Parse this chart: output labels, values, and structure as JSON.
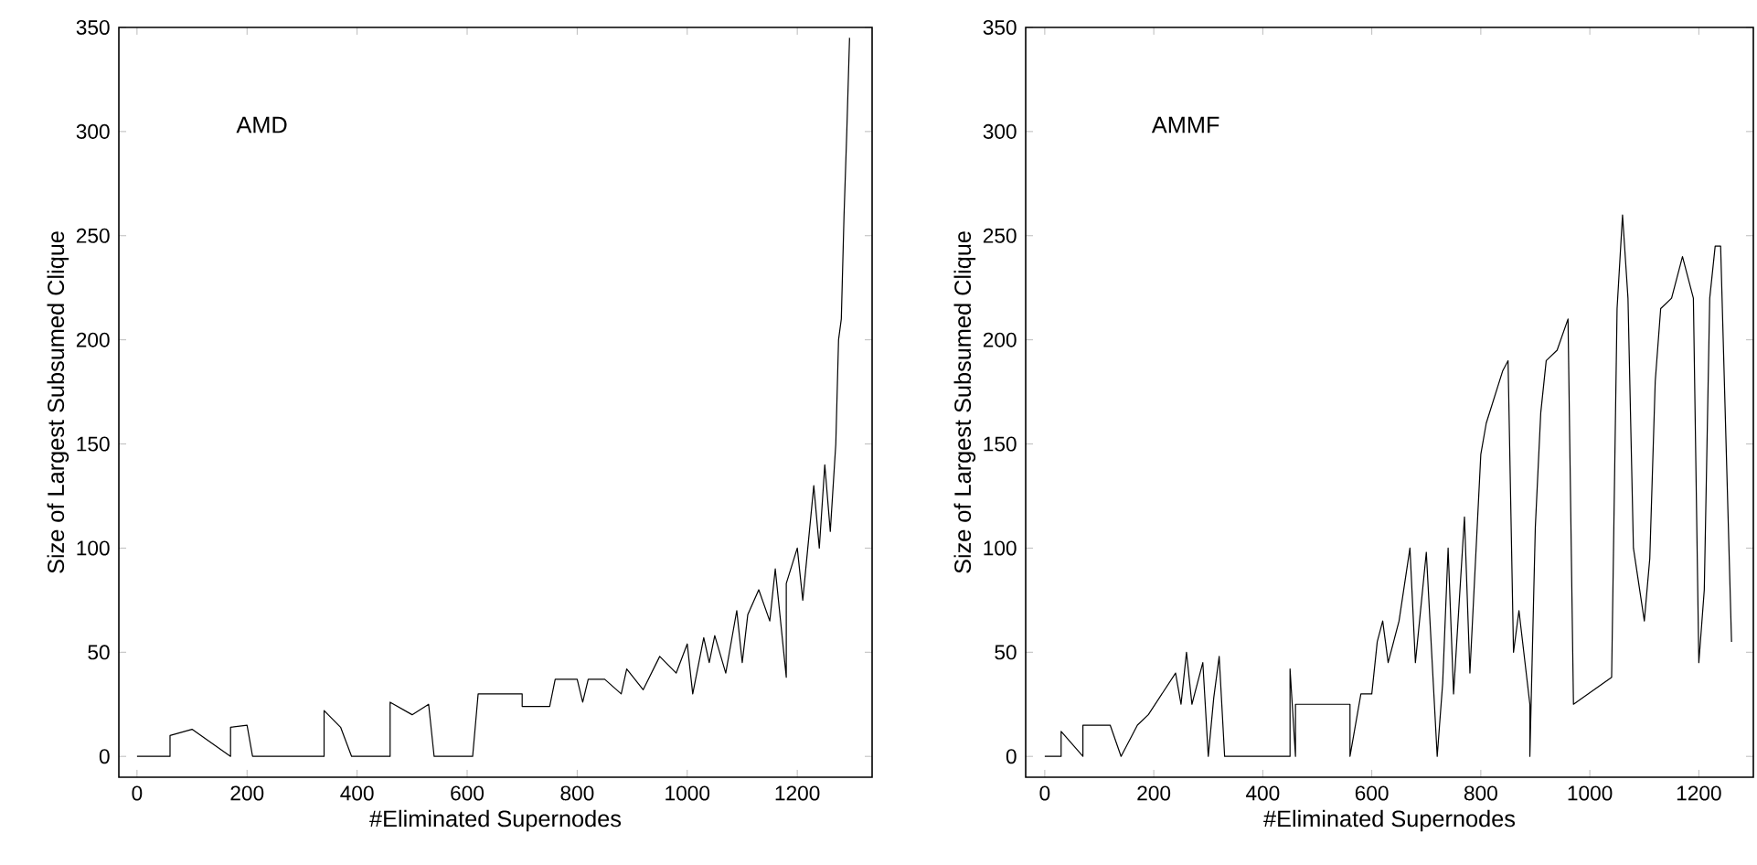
{
  "chart_data": [
    {
      "type": "line",
      "xlabel": "#Eliminated Supernodes",
      "ylabel": "Size of Largest Subsumed Clique",
      "annotations": [
        "AMD"
      ],
      "color": "#000000",
      "x": [
        0,
        60,
        60,
        100,
        170,
        170,
        200,
        210,
        340,
        340,
        370,
        390,
        460,
        460,
        500,
        530,
        540,
        610,
        620,
        700,
        700,
        750,
        760,
        800,
        810,
        820,
        850,
        880,
        890,
        920,
        950,
        980,
        1000,
        1010,
        1030,
        1040,
        1050,
        1070,
        1090,
        1100,
        1110,
        1130,
        1150,
        1160,
        1180,
        1180,
        1200,
        1210,
        1230,
        1240,
        1250,
        1260,
        1270,
        1275,
        1280,
        1285,
        1290,
        1295
      ],
      "values": [
        0,
        0,
        10,
        13,
        0,
        14,
        15,
        0,
        0,
        22,
        14,
        0,
        0,
        26,
        20,
        25,
        0,
        0,
        30,
        30,
        24,
        24,
        37,
        37,
        26,
        37,
        37,
        30,
        42,
        32,
        48,
        40,
        54,
        30,
        57,
        45,
        58,
        40,
        70,
        45,
        68,
        80,
        65,
        90,
        38,
        83,
        100,
        75,
        130,
        100,
        140,
        108,
        150,
        200,
        210,
        260,
        300,
        345
      ],
      "xlim": [
        -33,
        1336
      ],
      "ylim": [
        -10,
        350
      ],
      "xticks": [
        0,
        200,
        400,
        600,
        800,
        1000,
        1200
      ],
      "yticks": [
        0,
        50,
        100,
        150,
        200,
        250,
        300,
        350
      ]
    },
    {
      "type": "line",
      "xlabel": "#Eliminated Supernodes",
      "ylabel": "Size of Largest Subsumed Clique",
      "annotations": [
        "AMMF"
      ],
      "color": "#000000",
      "x": [
        0,
        30,
        30,
        70,
        70,
        120,
        140,
        170,
        190,
        240,
        250,
        260,
        270,
        290,
        300,
        310,
        320,
        330,
        450,
        450,
        460,
        460,
        560,
        560,
        580,
        600,
        610,
        620,
        630,
        650,
        670,
        680,
        700,
        720,
        730,
        740,
        750,
        770,
        780,
        800,
        810,
        840,
        850,
        860,
        870,
        890,
        890,
        900,
        910,
        920,
        940,
        960,
        970,
        1040,
        1050,
        1060,
        1070,
        1080,
        1100,
        1110,
        1120,
        1130,
        1150,
        1170,
        1190,
        1200,
        1210,
        1220,
        1230,
        1240,
        1260
      ],
      "values": [
        0,
        0,
        12,
        0,
        15,
        15,
        0,
        15,
        20,
        40,
        25,
        50,
        25,
        45,
        0,
        28,
        48,
        0,
        0,
        42,
        0,
        25,
        25,
        0,
        30,
        30,
        55,
        65,
        45,
        65,
        100,
        45,
        98,
        0,
        35,
        100,
        30,
        115,
        40,
        145,
        160,
        185,
        190,
        50,
        70,
        25,
        0,
        110,
        165,
        190,
        195,
        210,
        25,
        38,
        215,
        260,
        220,
        100,
        65,
        95,
        180,
        215,
        220,
        240,
        220,
        45,
        80,
        220,
        245,
        245,
        55
      ],
      "xlim": [
        -35,
        1300
      ],
      "ylim": [
        -10,
        350
      ],
      "xticks": [
        0,
        200,
        400,
        600,
        800,
        1000,
        1200
      ],
      "yticks": [
        0,
        50,
        100,
        150,
        200,
        250,
        300,
        350
      ]
    }
  ]
}
